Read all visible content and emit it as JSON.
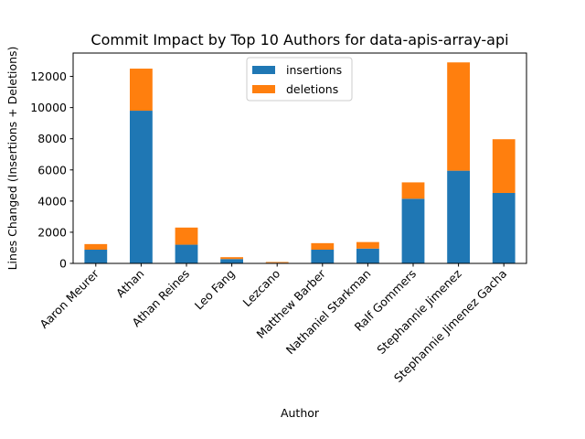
{
  "chart_data": {
    "type": "bar",
    "stacked": true,
    "title": "Commit Impact by Top 10 Authors for data-apis-array-api",
    "xlabel": "Author",
    "ylabel": "Lines Changed (Insertions + Deletions)",
    "categories": [
      "Aaron Meurer",
      "Athan",
      "Athan Reines",
      "Leo Fang",
      "Lezcano",
      "Matthew Barber",
      "Nathaniel Starkman",
      "Ralf Gommers",
      "Stephannie Jimenez",
      "Stephannie Jimenez Gacha"
    ],
    "series": [
      {
        "name": "insertions",
        "color": "#1f77b4",
        "values": [
          880,
          9800,
          1200,
          280,
          40,
          880,
          950,
          4150,
          5950,
          4520
        ]
      },
      {
        "name": "deletions",
        "color": "#ff7f0e",
        "values": [
          360,
          2700,
          1100,
          120,
          50,
          420,
          420,
          1050,
          6950,
          3450
        ]
      }
    ],
    "ylim": [
      0,
      13500
    ],
    "yticks": [
      0,
      2000,
      4000,
      6000,
      8000,
      10000,
      12000
    ],
    "ytick_labels": [
      "0",
      "2000",
      "4000",
      "6000",
      "8000",
      "10000",
      "12000"
    ],
    "grid": false,
    "legend_position": "top-center"
  }
}
